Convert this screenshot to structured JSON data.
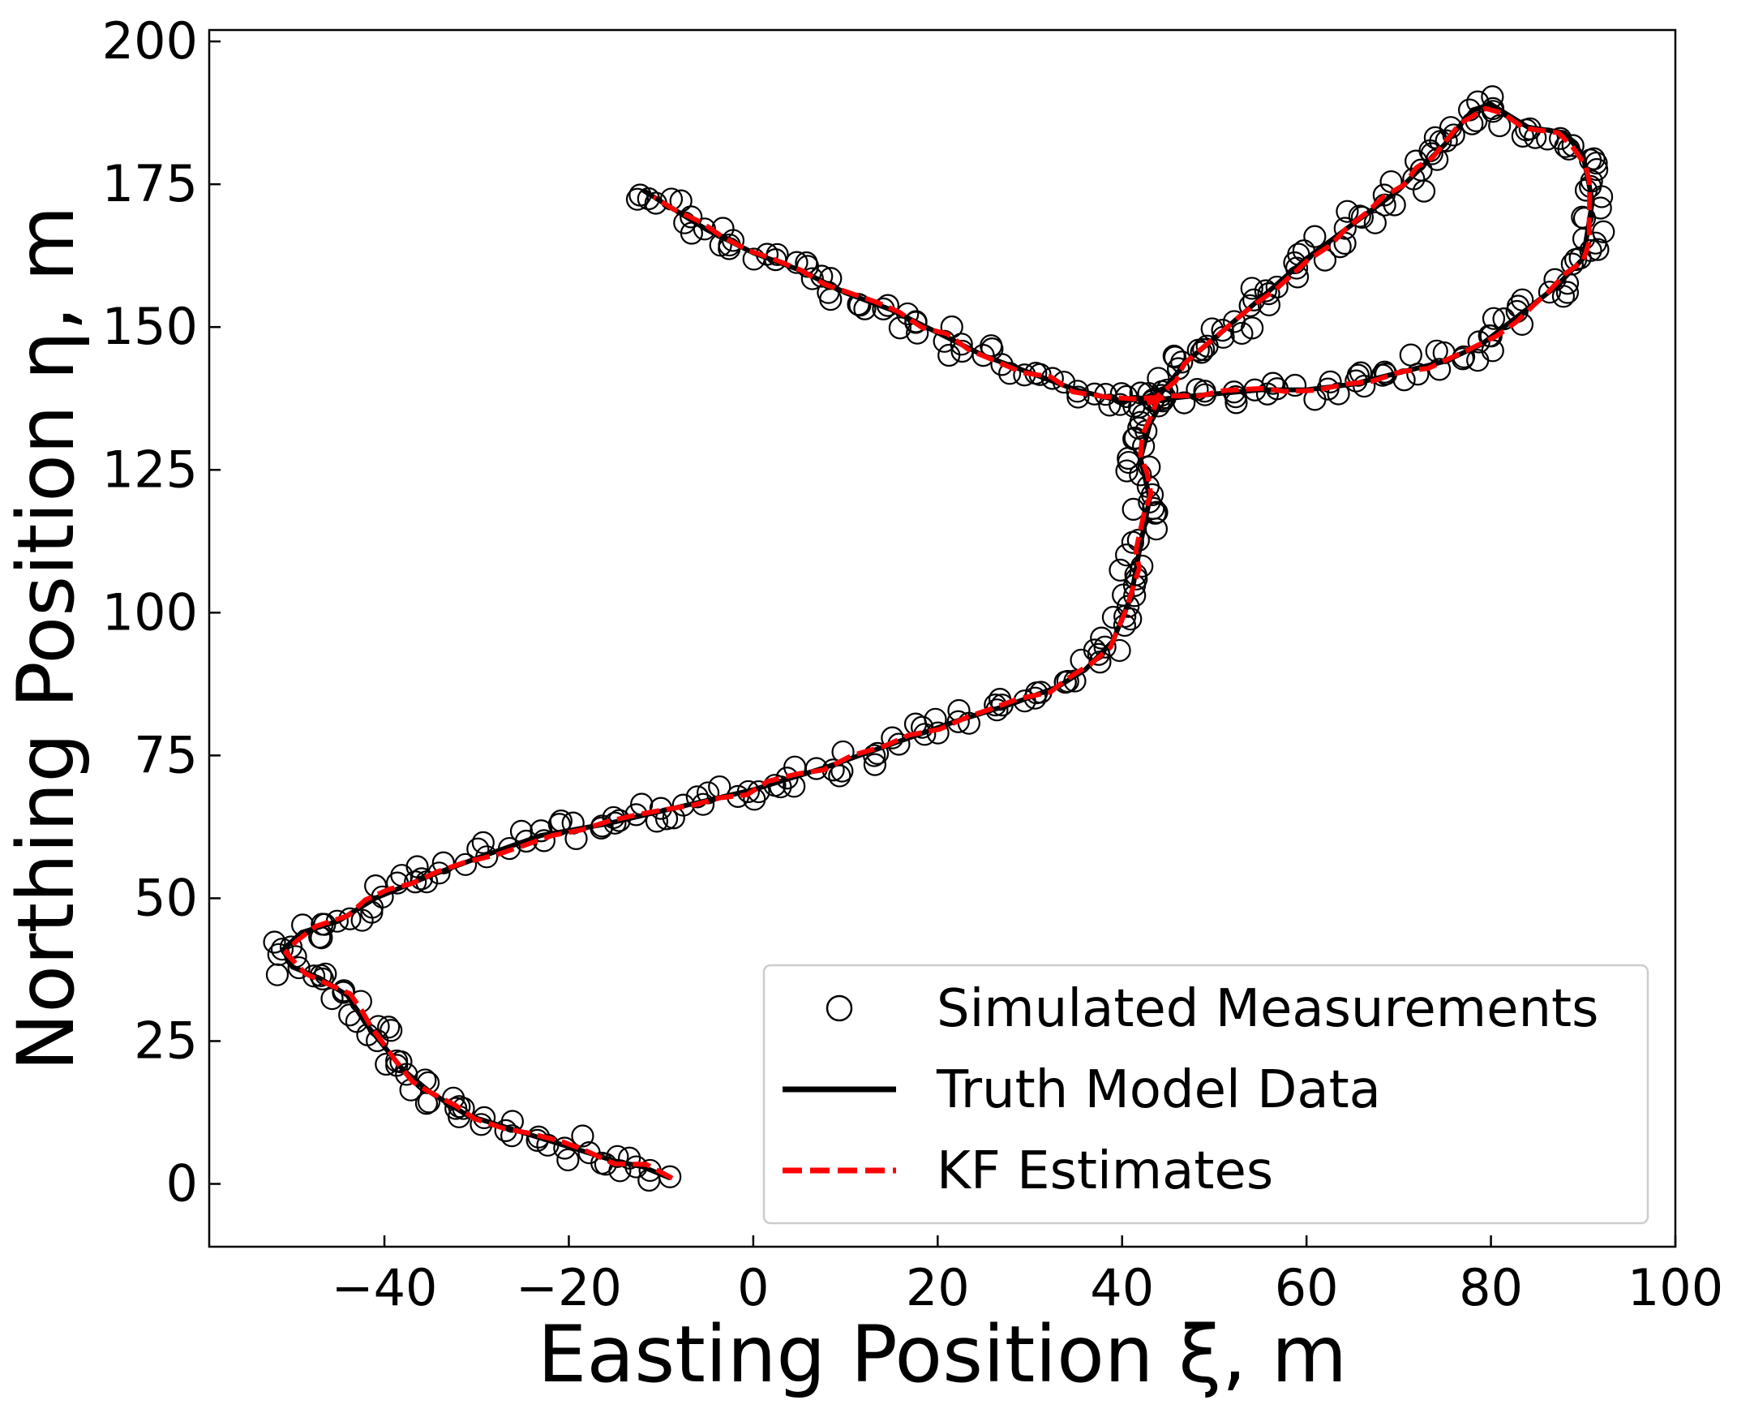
{
  "chart_data": {
    "type": "line",
    "xlabel": "Easting Position ξ, m",
    "ylabel": "Northing Position η, m",
    "xlim": [
      -59,
      100
    ],
    "ylim": [
      -11,
      202
    ],
    "xticks": [
      -40,
      -20,
      0,
      20,
      40,
      60,
      80,
      100
    ],
    "yticks": [
      0,
      25,
      50,
      75,
      100,
      125,
      150,
      175,
      200
    ],
    "xtick_labels": [
      "−40",
      "−20",
      "0",
      "20",
      "40",
      "60",
      "80",
      "100"
    ],
    "ytick_labels": [
      "0",
      "25",
      "50",
      "75",
      "100",
      "125",
      "150",
      "175",
      "200"
    ],
    "grid": false,
    "legend_position": "lower-right",
    "series": [
      {
        "name": "Simulated Measurements",
        "style": "scatter",
        "marker": "open-circle",
        "color": "#000000"
      },
      {
        "name": "Truth Model Data",
        "style": "solid",
        "color": "#000000"
      },
      {
        "name": "KF Estimates",
        "style": "dashed",
        "color": "#ff0000"
      }
    ],
    "trajectory": {
      "x": [
        -9,
        -12,
        -15,
        -19,
        -23,
        -27,
        -31,
        -35,
        -38,
        -40,
        -42,
        -44,
        -47,
        -50,
        -51,
        -49,
        -45,
        -41,
        -35,
        -30,
        -23,
        -16,
        -8,
        0,
        8,
        15,
        22,
        28,
        33,
        36,
        39,
        41,
        42,
        43,
        42,
        43,
        44,
        43,
        42,
        48,
        55,
        60,
        65,
        70,
        75,
        79,
        83,
        87,
        90,
        91,
        90,
        88,
        84,
        80,
        78,
        75,
        70,
        65,
        60,
        55,
        50,
        47,
        45,
        44,
        40,
        35,
        30,
        25,
        20,
        15,
        10,
        5,
        0,
        -5,
        -10,
        -12
      ],
      "y": [
        1,
        3,
        4,
        6,
        8,
        10,
        12,
        16,
        20,
        24,
        28,
        33,
        36,
        38,
        41,
        44,
        46,
        50,
        54,
        57,
        61,
        63,
        66,
        69,
        73,
        77,
        81,
        84,
        87,
        90,
        95,
        103,
        112,
        120,
        127,
        133,
        136,
        138,
        137,
        138,
        139,
        139,
        140,
        142,
        144,
        147,
        152,
        157,
        162,
        172,
        180,
        184,
        185,
        189,
        188,
        182,
        174,
        168,
        162,
        155,
        148,
        144,
        140,
        138,
        137,
        139,
        142,
        145,
        149,
        153,
        156,
        160,
        163,
        167,
        172,
        174
      ]
    }
  }
}
